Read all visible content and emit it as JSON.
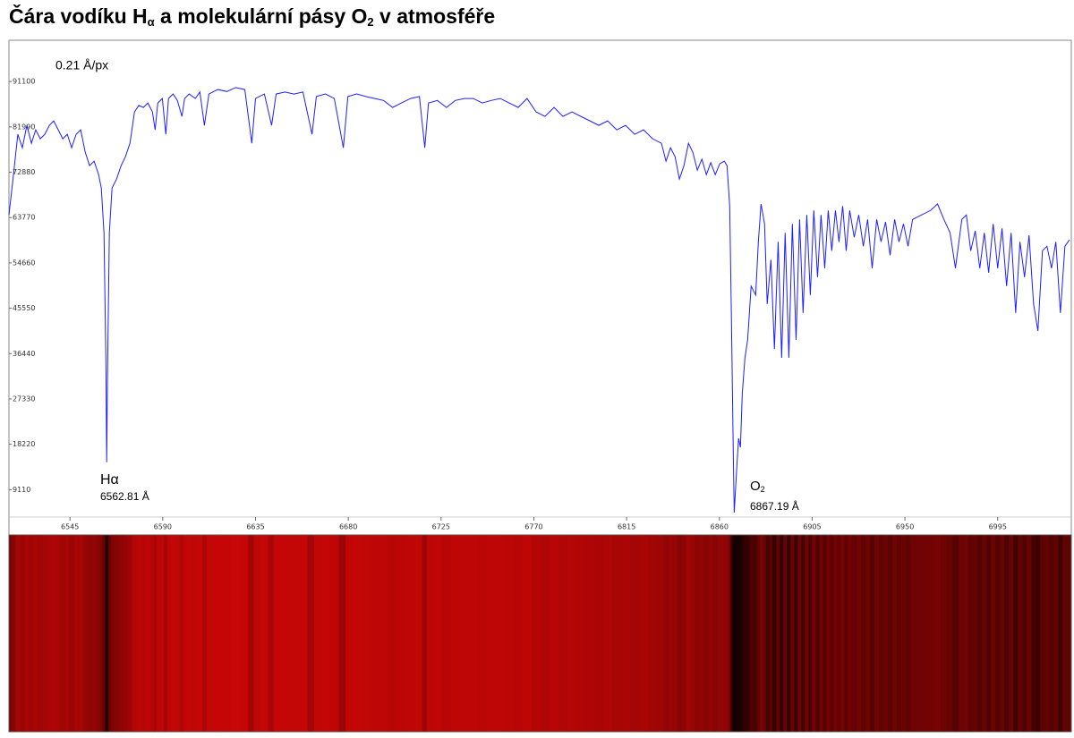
{
  "title": [
    "Čára vodíku H",
    "α",
    " a molekulární pásy O",
    "2",
    " v atmosféře"
  ],
  "chart_data": {
    "type": "line",
    "annotations": {
      "scale": "0.21 Å/px",
      "halpha": "Hα",
      "halpha_wavelength": "6562.81 Å",
      "o2": [
        "O",
        "2"
      ],
      "o2_wavelength": "6867.19 Å"
    },
    "xlim": [
      6515.4,
      7030.7
    ],
    "xticks": [
      6545,
      6590,
      6635,
      6680,
      6725,
      6770,
      6815,
      6860,
      6905,
      6950,
      6995
    ],
    "ylim": [
      0,
      99400
    ],
    "yticks": [
      9110,
      18220,
      27330,
      36440,
      45550,
      54660,
      63770,
      72880,
      81990,
      91100
    ],
    "grid": false,
    "spectrum_strip": true,
    "x": [
      6515.4,
      6517.6,
      6519.7,
      6521.9,
      6524.1,
      6526.3,
      6528.4,
      6530.6,
      6532.8,
      6535.0,
      6537.1,
      6539.3,
      6541.5,
      6543.7,
      6545.8,
      6548.0,
      6550.2,
      6552.4,
      6554.5,
      6556.7,
      6558.9,
      6560.2,
      6561.5,
      6562.4,
      6562.81,
      6563.2,
      6564.1,
      6565.4,
      6567.6,
      6569.8,
      6571.9,
      6574.1,
      6576.3,
      6578.4,
      6580.6,
      6582.8,
      6585.0,
      6586.3,
      6587.6,
      6589.8,
      6591.5,
      6592.8,
      6595.0,
      6597.1,
      6599.3,
      6600.6,
      6602.8,
      6605.8,
      6608.0,
      6610.2,
      6612.4,
      6616.7,
      6621.1,
      6625.4,
      6629.8,
      6633.2,
      6635.0,
      6639.3,
      6642.8,
      6645.0,
      6649.3,
      6653.7,
      6658.0,
      6662.4,
      6664.5,
      6668.9,
      6673.2,
      6677.6,
      6679.8,
      6684.1,
      6688.5,
      6692.8,
      6697.1,
      6701.5,
      6705.8,
      6710.2,
      6714.5,
      6717.1,
      6718.9,
      6723.2,
      6727.6,
      6731.9,
      6736.3,
      6740.6,
      6745.0,
      6749.3,
      6753.7,
      6758.0,
      6762.4,
      6766.7,
      6771.1,
      6775.4,
      6779.8,
      6784.1,
      6788.5,
      6792.8,
      6797.2,
      6801.5,
      6805.8,
      6810.2,
      6814.5,
      6818.9,
      6823.2,
      6827.6,
      6831.9,
      6834.1,
      6836.3,
      6838.5,
      6840.6,
      6842.8,
      6845.0,
      6847.1,
      6849.3,
      6851.5,
      6853.7,
      6855.8,
      6858.0,
      6860.2,
      6862.4,
      6863.7,
      6865.0,
      6865.8,
      6866.7,
      6867.19,
      6868.5,
      6869.3,
      6870.2,
      6871.1,
      6872.4,
      6873.7,
      6875.4,
      6877.6,
      6878.9,
      6880.2,
      6881.9,
      6883.2,
      6885.0,
      6886.7,
      6888.5,
      6890.2,
      6891.9,
      6893.7,
      6895.4,
      6897.2,
      6898.9,
      6900.6,
      6902.4,
      6904.1,
      6905.8,
      6907.6,
      6909.3,
      6911.1,
      6912.8,
      6914.5,
      6916.3,
      6918.0,
      6919.8,
      6921.5,
      6923.2,
      6925.4,
      6927.6,
      6929.8,
      6931.9,
      6934.1,
      6936.3,
      6938.4,
      6940.6,
      6942.8,
      6945.0,
      6947.1,
      6949.3,
      6951.5,
      6953.7,
      6958.0,
      6962.4,
      6965.8,
      6968.9,
      6971.9,
      6974.5,
      6977.6,
      6979.8,
      6981.9,
      6984.1,
      6986.3,
      6988.5,
      6990.6,
      6992.8,
      6995.0,
      6997.1,
      6999.3,
      7001.5,
      7003.7,
      7005.8,
      7008.0,
      7010.2,
      7012.4,
      7014.5,
      7016.7,
      7018.9,
      7021.1,
      7023.2,
      7025.4,
      7027.6,
      7029.8
    ],
    "series": [
      {
        "color": "#1f1fff",
        "values": [
          64300,
          72400,
          80500,
          77800,
          82300,
          78700,
          81400,
          79600,
          80500,
          82300,
          83200,
          81400,
          79600,
          80500,
          77800,
          80500,
          81400,
          76900,
          74200,
          75100,
          72400,
          69700,
          60700,
          35600,
          14600,
          32000,
          60700,
          69700,
          71500,
          74200,
          76000,
          78700,
          85000,
          86300,
          85900,
          86800,
          85000,
          81400,
          86800,
          87700,
          80500,
          87700,
          88600,
          87300,
          84100,
          87700,
          88600,
          87700,
          89000,
          82300,
          88600,
          89500,
          89100,
          89900,
          89500,
          78700,
          87700,
          88600,
          82300,
          88600,
          89000,
          88600,
          89000,
          80500,
          88100,
          88600,
          87700,
          77800,
          88100,
          88600,
          88100,
          87700,
          87300,
          85900,
          86800,
          87700,
          88100,
          77800,
          86800,
          87300,
          85900,
          87300,
          87700,
          87700,
          86800,
          87300,
          87700,
          86800,
          85900,
          87700,
          85000,
          84100,
          85900,
          84100,
          85000,
          84100,
          83200,
          82300,
          83200,
          81400,
          82300,
          80500,
          81400,
          79600,
          78700,
          75100,
          77800,
          76000,
          71500,
          74200,
          78700,
          76900,
          73300,
          75500,
          72400,
          74800,
          72400,
          74600,
          75100,
          74200,
          66100,
          44600,
          17600,
          4500,
          14000,
          19400,
          17600,
          28400,
          35600,
          39200,
          50000,
          48200,
          58900,
          66500,
          62500,
          46400,
          55300,
          37400,
          58900,
          35600,
          60700,
          35600,
          62500,
          39200,
          63400,
          44600,
          64300,
          48200,
          65200,
          51800,
          64300,
          53600,
          65200,
          57100,
          65200,
          58900,
          66100,
          57100,
          65200,
          59800,
          64300,
          58000,
          63400,
          53600,
          63400,
          58900,
          62900,
          56200,
          63400,
          58900,
          62500,
          58000,
          63400,
          64300,
          65200,
          66500,
          63400,
          60700,
          53600,
          63400,
          64300,
          57100,
          61100,
          53600,
          60700,
          52700,
          62500,
          53600,
          61600,
          50000,
          60700,
          44600,
          58900,
          51800,
          60200,
          46400,
          41000,
          57100,
          58000,
          53600,
          58900,
          44600,
          58000,
          59300
        ]
      }
    ]
  }
}
